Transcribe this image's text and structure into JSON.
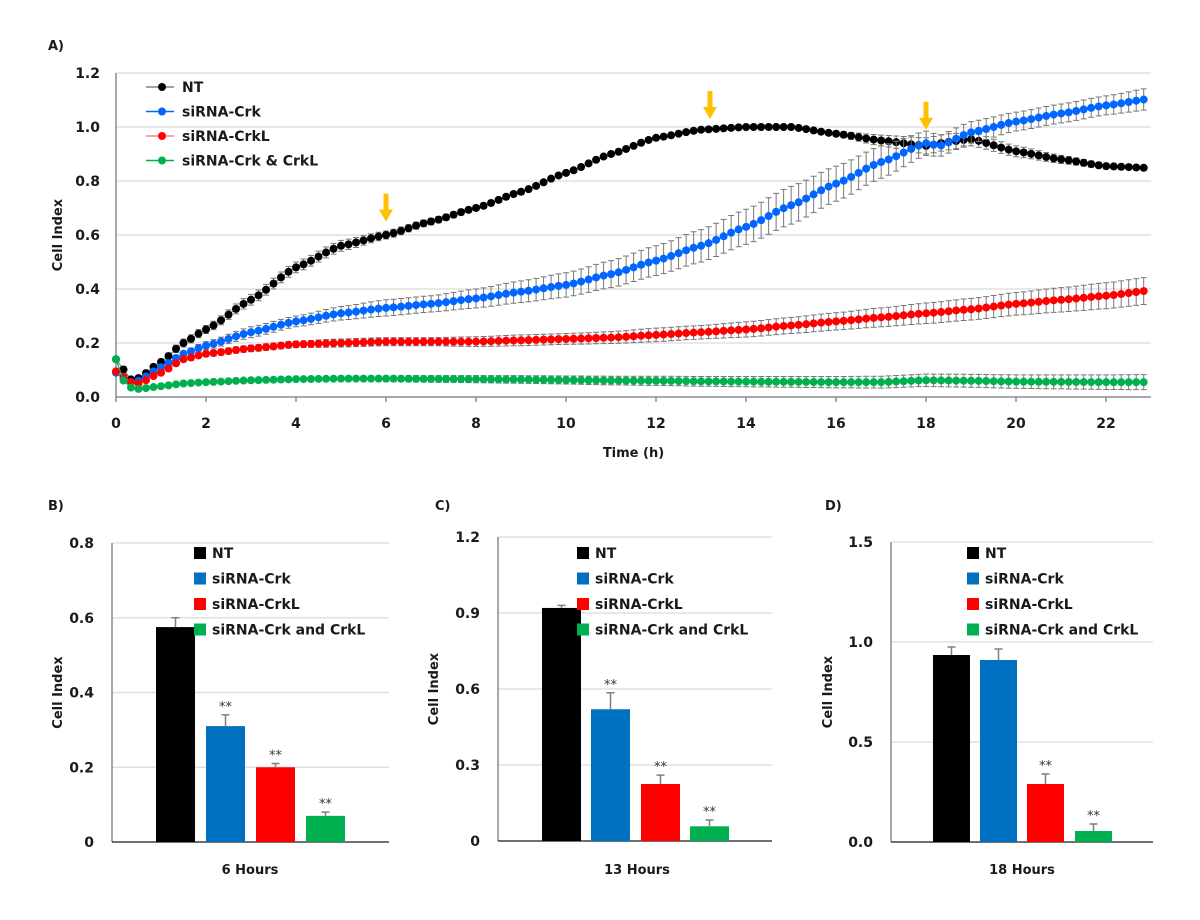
{
  "chart_data": [
    {
      "id": "A",
      "type": "line",
      "panel_label": "A)",
      "xlabel": "Time (h)",
      "ylabel": "Cell Index",
      "xlim": [
        0,
        23
      ],
      "ylim": [
        0,
        1.2
      ],
      "xticks": [
        0,
        2,
        4,
        6,
        8,
        10,
        12,
        14,
        16,
        18,
        20,
        22
      ],
      "yticks": [
        0.0,
        0.2,
        0.4,
        0.6,
        0.8,
        1.0,
        1.2
      ],
      "ytick_labels": [
        "0.0",
        "0.2",
        "0.4",
        "0.6",
        "0.8",
        "1.0",
        "1.2"
      ],
      "grid": true,
      "legend_position": "top-left",
      "sampling_interval_h": 0.1667,
      "annotations": [
        {
          "type": "arrow",
          "x": 6.0,
          "y": 0.62,
          "color": "#FFC000"
        },
        {
          "type": "arrow",
          "x": 13.2,
          "y": 1.0,
          "color": "#FFC000"
        },
        {
          "type": "arrow",
          "x": 18.0,
          "y": 0.96,
          "color": "#FFC000"
        }
      ],
      "series": [
        {
          "name": "NT",
          "color": "#000000",
          "line_color": "#808080",
          "anchors_x": [
            0,
            0.33,
            0.5,
            1,
            1.5,
            2,
            3,
            4,
            5,
            6,
            7,
            8,
            9,
            10,
            11,
            12,
            13,
            14,
            15,
            16,
            17,
            18,
            18.5,
            19,
            20,
            21,
            22,
            23
          ],
          "anchors_y": [
            0.14,
            0.065,
            0.07,
            0.13,
            0.2,
            0.25,
            0.36,
            0.48,
            0.56,
            0.6,
            0.65,
            0.7,
            0.76,
            0.83,
            0.9,
            0.96,
            0.99,
            1.0,
            1.0,
            0.975,
            0.95,
            0.93,
            0.945,
            0.955,
            0.91,
            0.88,
            0.855,
            0.848
          ],
          "error": [
            0.01,
            0.01,
            0.01,
            0.01,
            0.015,
            0.015,
            0.02,
            0.02,
            0.02,
            0.015,
            0.012,
            0.01,
            0.008,
            0.006,
            0.005,
            0.005,
            0.005,
            0.005,
            0.005,
            0.01,
            0.02,
            0.03,
            0.03,
            0.025,
            0.02,
            0.015,
            0.01,
            0.008
          ]
        },
        {
          "name": "siRNA-Crk",
          "color": "#0066FF",
          "line_color": "#0066FF",
          "anchors_x": [
            0,
            0.33,
            0.5,
            1,
            1.5,
            2,
            3,
            4,
            5,
            6,
            7,
            8,
            9,
            10,
            11,
            12,
            13,
            14,
            15,
            16,
            17,
            18,
            18.3,
            19,
            20,
            21,
            22,
            23
          ],
          "anchors_y": [
            0.09,
            0.055,
            0.06,
            0.11,
            0.16,
            0.19,
            0.24,
            0.28,
            0.31,
            0.33,
            0.345,
            0.365,
            0.39,
            0.415,
            0.455,
            0.505,
            0.56,
            0.63,
            0.71,
            0.79,
            0.87,
            0.94,
            0.93,
            0.98,
            1.02,
            1.05,
            1.08,
            1.105
          ],
          "error": [
            0.01,
            0.01,
            0.01,
            0.01,
            0.01,
            0.015,
            0.02,
            0.02,
            0.025,
            0.03,
            0.03,
            0.035,
            0.04,
            0.045,
            0.05,
            0.055,
            0.06,
            0.065,
            0.07,
            0.065,
            0.06,
            0.045,
            0.04,
            0.04,
            0.035,
            0.035,
            0.035,
            0.04
          ]
        },
        {
          "name": "siRNA-CrkL",
          "color": "#FF0000",
          "line_color": "#FF8080",
          "anchors_x": [
            0,
            0.33,
            0.5,
            1,
            1.5,
            2,
            3,
            4,
            5,
            6,
            7,
            8,
            9,
            10,
            11,
            12,
            13,
            14,
            15,
            16,
            17,
            18,
            19,
            20,
            21,
            22,
            23
          ],
          "anchors_y": [
            0.095,
            0.055,
            0.05,
            0.09,
            0.14,
            0.16,
            0.18,
            0.195,
            0.2,
            0.205,
            0.205,
            0.205,
            0.21,
            0.215,
            0.22,
            0.23,
            0.24,
            0.25,
            0.265,
            0.28,
            0.295,
            0.31,
            0.325,
            0.345,
            0.36,
            0.375,
            0.395
          ],
          "error": [
            0.005,
            0.005,
            0.005,
            0.008,
            0.01,
            0.01,
            0.012,
            0.012,
            0.015,
            0.015,
            0.015,
            0.018,
            0.02,
            0.02,
            0.022,
            0.025,
            0.025,
            0.028,
            0.03,
            0.032,
            0.035,
            0.038,
            0.04,
            0.042,
            0.045,
            0.048,
            0.05
          ]
        },
        {
          "name": "siRNA-Crk & CrkL",
          "color": "#00B050",
          "line_color": "#00B050",
          "anchors_x": [
            0,
            0.17,
            0.33,
            0.5,
            1,
            1.5,
            2,
            3,
            4,
            5,
            6,
            7,
            8,
            9,
            10,
            11,
            12,
            13,
            14,
            15,
            16,
            17,
            18,
            19,
            20,
            21,
            22,
            23
          ],
          "anchors_y": [
            0.14,
            0.06,
            0.035,
            0.03,
            0.04,
            0.05,
            0.055,
            0.062,
            0.066,
            0.068,
            0.068,
            0.067,
            0.066,
            0.065,
            0.063,
            0.061,
            0.06,
            0.058,
            0.057,
            0.056,
            0.055,
            0.055,
            0.062,
            0.06,
            0.057,
            0.056,
            0.055,
            0.055
          ],
          "error": [
            0.005,
            0.005,
            0.005,
            0.005,
            0.005,
            0.005,
            0.006,
            0.006,
            0.007,
            0.008,
            0.01,
            0.012,
            0.013,
            0.014,
            0.015,
            0.016,
            0.017,
            0.018,
            0.019,
            0.02,
            0.021,
            0.022,
            0.023,
            0.024,
            0.025,
            0.026,
            0.027,
            0.028
          ]
        }
      ]
    },
    {
      "id": "B",
      "type": "bar",
      "panel_label": "B)",
      "xlabel": "6 Hours",
      "ylabel": "Cell Index",
      "ylim": [
        0,
        0.8
      ],
      "yticks": [
        0,
        0.2,
        0.4,
        0.6,
        0.8
      ],
      "ytick_labels": [
        "0",
        "0.2",
        "0.4",
        "0.6",
        "0.8"
      ],
      "grid": true,
      "legend_position": "top-right",
      "categories": [
        "NT",
        "siRNA-Crk",
        "siRNA-CrkL",
        "siRNA-Crk and CrkL"
      ],
      "values": [
        0.575,
        0.31,
        0.2,
        0.07
      ],
      "errors": [
        0.025,
        0.03,
        0.01,
        0.01
      ],
      "significance": [
        "",
        "**",
        "**",
        "**"
      ]
    },
    {
      "id": "C",
      "type": "bar",
      "panel_label": "C)",
      "xlabel": "13 Hours",
      "ylabel": "Cell Index",
      "ylim": [
        0,
        1.2
      ],
      "yticks": [
        0,
        0.3,
        0.6,
        0.9,
        1.2
      ],
      "ytick_labels": [
        "0",
        "0.3",
        "0.6",
        "0.9",
        "1.2"
      ],
      "grid": true,
      "legend_position": "top-right",
      "categories": [
        "NT",
        "siRNA-Crk",
        "siRNA-CrkL",
        "siRNA-Crk and CrkL"
      ],
      "values": [
        0.92,
        0.52,
        0.225,
        0.058
      ],
      "errors": [
        0.01,
        0.065,
        0.035,
        0.025
      ],
      "significance": [
        "",
        "**",
        "**",
        "**"
      ]
    },
    {
      "id": "D",
      "type": "bar",
      "panel_label": "D)",
      "xlabel": "18 Hours",
      "ylabel": "Cell Index",
      "ylim": [
        0,
        1.5
      ],
      "yticks": [
        0,
        0.5,
        1.0,
        1.5
      ],
      "ytick_labels": [
        "0.0",
        "0.5",
        "1.0",
        "1.5"
      ],
      "grid": true,
      "legend_position": "top-right",
      "categories": [
        "NT",
        "siRNA-Crk",
        "siRNA-CrkL",
        "siRNA-Crk and CrkL"
      ],
      "values": [
        0.935,
        0.91,
        0.29,
        0.055
      ],
      "errors": [
        0.04,
        0.055,
        0.05,
        0.035
      ],
      "significance": [
        "",
        "",
        "**",
        "**"
      ]
    }
  ],
  "bar_colors": [
    "#000000",
    "#0070C0",
    "#FF0000",
    "#00B050"
  ]
}
